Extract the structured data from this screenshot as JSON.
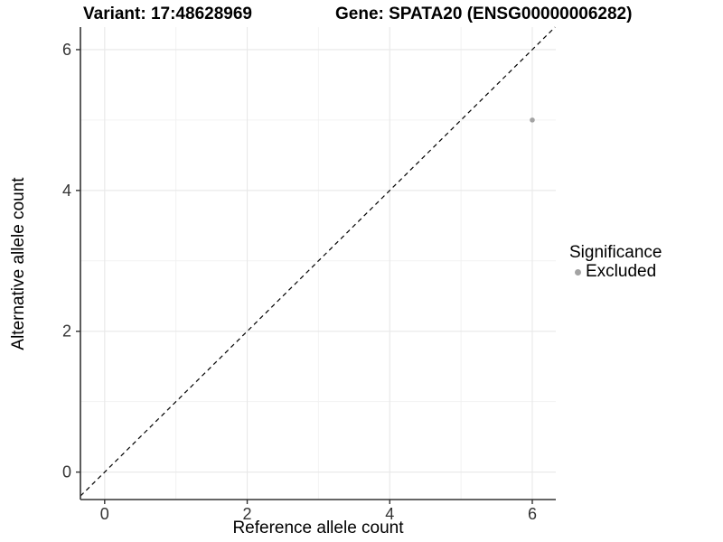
{
  "titles": {
    "variant": "Variant: 17:48628969",
    "gene": "Gene: SPATA20 (ENSG00000006282)"
  },
  "chart_data": {
    "type": "scatter",
    "title": "Variant: 17:48628969   Gene: SPATA20 (ENSG00000006282)",
    "xlabel": "Reference allele count",
    "ylabel": "Alternative allele count",
    "x_ticks": [
      0,
      2,
      4,
      6
    ],
    "y_ticks": [
      0,
      2,
      4,
      6
    ],
    "x_minor_gridlines": [
      1,
      3,
      5
    ],
    "y_minor_gridlines": [
      1,
      3,
      5
    ],
    "xlim": [
      -0.34,
      6.33
    ],
    "ylim": [
      -0.39,
      6.32
    ],
    "grid": true,
    "points": [
      {
        "x": 6,
        "y": 5,
        "series": "Excluded"
      }
    ],
    "identity_line": {
      "style": "dashed",
      "slope": 1,
      "intercept": 0,
      "color": "#000000"
    },
    "legend": {
      "title": "Significance",
      "position": "right",
      "items": [
        {
          "label": "Excluded",
          "color": "#a3a3a3"
        }
      ]
    },
    "colors": {
      "point": "#a3a3a3",
      "grid_major": "#e8e8e8",
      "grid_minor": "#f2f2f2",
      "axis_line": "#333333",
      "tick_label": "#333333",
      "background": "#ffffff"
    }
  }
}
